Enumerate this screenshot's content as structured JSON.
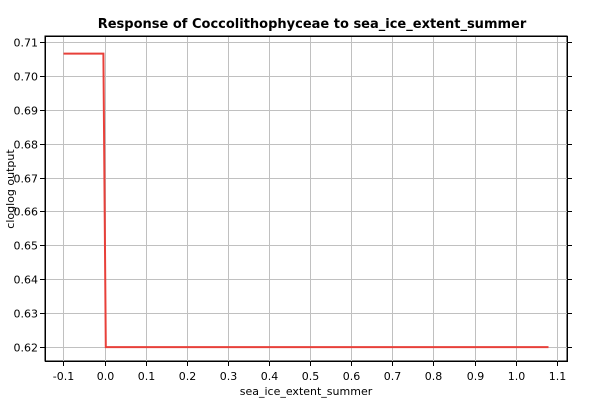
{
  "chart_data": {
    "type": "line",
    "title": "Response of Coccolithophyceae to sea_ice_extent_summer",
    "xlabel": "sea_ice_extent_summer",
    "ylabel": "cloglog output",
    "xlim": [
      -0.145,
      1.125
    ],
    "ylim": [
      0.6158,
      0.7118
    ],
    "x_ticks": [
      -0.1,
      0.0,
      0.1,
      0.2,
      0.3,
      0.4,
      0.5,
      0.6,
      0.7,
      0.8,
      0.9,
      1.0,
      1.1
    ],
    "x_tick_labels": [
      "-0.1",
      "0.0",
      "0.1",
      "0.2",
      "0.3",
      "0.4",
      "0.5",
      "0.6",
      "0.7",
      "0.8",
      "0.9",
      "1.0",
      "1.1"
    ],
    "y_ticks": [
      0.62,
      0.63,
      0.64,
      0.65,
      0.66,
      0.67,
      0.68,
      0.69,
      0.7,
      0.71
    ],
    "y_tick_labels": [
      "0.62",
      "0.63",
      "0.64",
      "0.65",
      "0.66",
      "0.67",
      "0.68",
      "0.69",
      "0.70",
      "0.71"
    ],
    "grid": true,
    "legend": "none",
    "series": [
      {
        "color": "#e8403a",
        "x": [
          -0.1,
          -0.003,
          0.003,
          1.08
        ],
        "y": [
          0.7066,
          0.7066,
          0.6199,
          0.6199
        ]
      }
    ]
  }
}
